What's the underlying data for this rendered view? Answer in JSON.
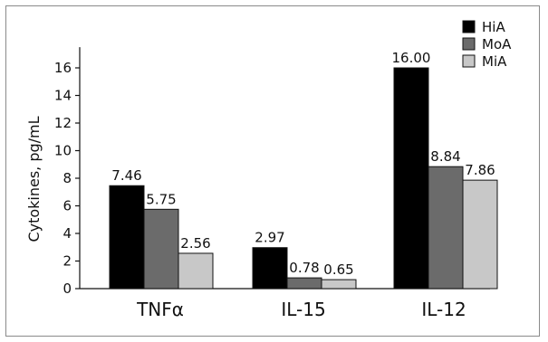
{
  "chart_data": {
    "type": "bar",
    "ylabel": "Cytokines, pg/mL",
    "xlabel": "",
    "ylim": [
      0,
      17.5
    ],
    "yticks": [
      0,
      2,
      4,
      6,
      8,
      10,
      12,
      14,
      16
    ],
    "categories": [
      "TNFα",
      "IL-15",
      "IL-12"
    ],
    "series": [
      {
        "name": "HiA",
        "color": "#000000",
        "values": [
          7.46,
          2.97,
          16.0
        ],
        "labels": [
          "7.46",
          "2.97",
          "16.00"
        ]
      },
      {
        "name": "MoA",
        "color": "#6b6b6b",
        "values": [
          5.75,
          0.78,
          8.84
        ],
        "labels": [
          "5.75",
          "0.78",
          "8.84"
        ]
      },
      {
        "name": "MiA",
        "color": "#c8c8c8",
        "values": [
          2.56,
          0.65,
          7.86
        ],
        "labels": [
          "2.56",
          "0.65",
          "7.86"
        ]
      }
    ],
    "legend_position": "top-right",
    "grid": false
  }
}
